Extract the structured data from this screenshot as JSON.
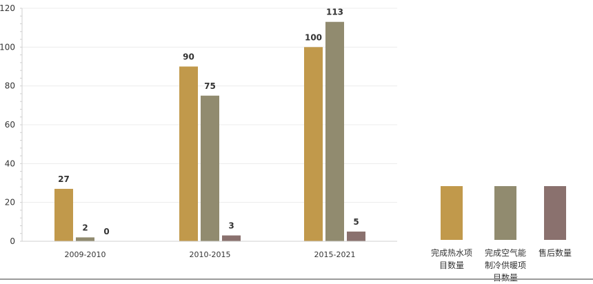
{
  "chart_data": {
    "type": "bar",
    "categories": [
      "2009-2010",
      "2010-2015",
      "2015-2021"
    ],
    "series": [
      {
        "name": "完成热水项目数量",
        "values": [
          27,
          90,
          100
        ],
        "color": "#C1994B"
      },
      {
        "name": "完成空气能制冷供暖项目数量",
        "values": [
          2,
          75,
          113
        ],
        "color": "#918B6F"
      },
      {
        "name": "售后数量",
        "values": [
          0,
          3,
          5
        ],
        "color": "#8A716E"
      }
    ],
    "ylim": [
      0,
      120
    ],
    "yticks": [
      0,
      20,
      40,
      60,
      80,
      100,
      120
    ],
    "grid": true,
    "legend_position": "right",
    "title": "",
    "xlabel": "",
    "ylabel": ""
  }
}
